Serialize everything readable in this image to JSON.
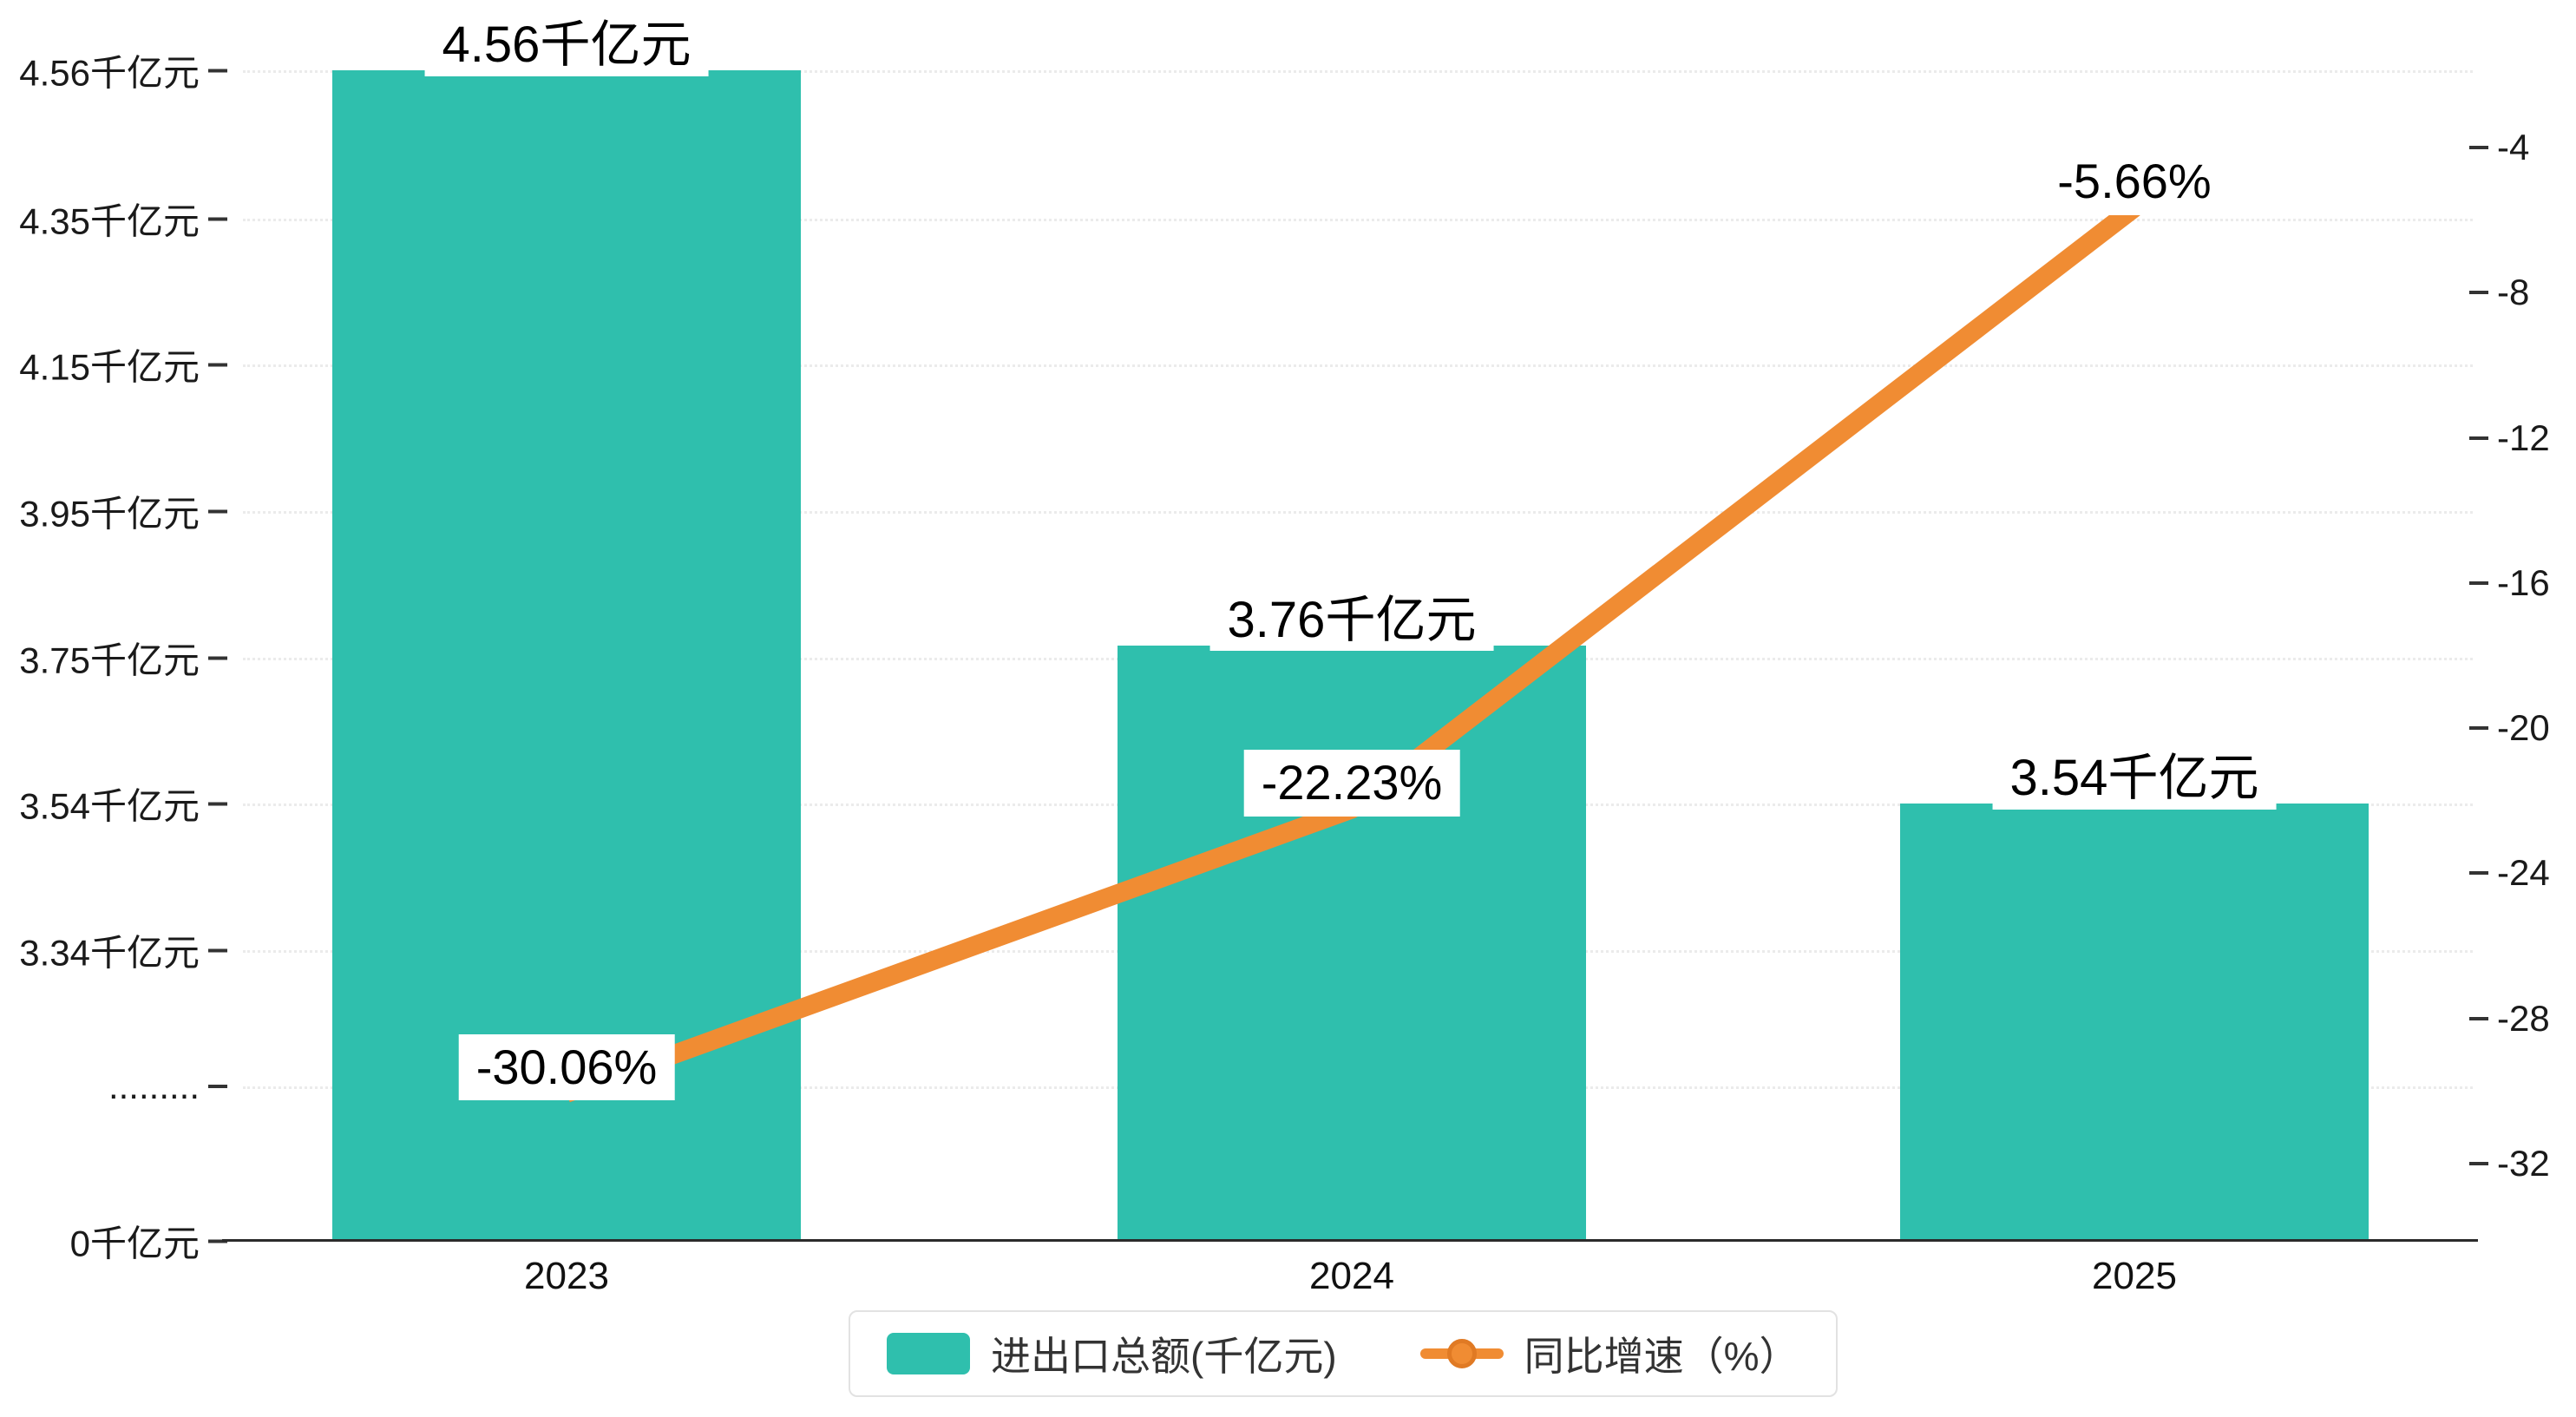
{
  "chart_data": {
    "type": "bar+line",
    "categories": [
      "2023",
      "2024",
      "2025"
    ],
    "series": [
      {
        "name": "进出口总额(千亿元)",
        "type": "bar",
        "color": "#2fbfad",
        "values": [
          4.56,
          3.76,
          3.54
        ],
        "display_labels": [
          "4.56千亿元",
          "3.76千亿元",
          "3.54千亿元"
        ]
      },
      {
        "name": "同比增速（%）",
        "type": "line",
        "color": "#f08c33",
        "values": [
          -30.06,
          -22.23,
          -5.66
        ],
        "display_labels": [
          "-30.06%",
          "-22.23%",
          "-5.66%"
        ]
      }
    ],
    "left_axis": {
      "unit": "千亿元",
      "tick_labels": [
        "4.56千亿元",
        "4.35千亿元",
        "4.15千亿元",
        "3.95千亿元",
        "3.75千亿元",
        "3.54千亿元",
        "3.34千亿元",
        ".........",
        "0千亿元"
      ],
      "axis_break": true
    },
    "right_axis": {
      "tick_labels": [
        "-4",
        "-8",
        "-12",
        "-16",
        "-20",
        "-24",
        "-28",
        "-32"
      ],
      "range": [
        -32,
        -4
      ]
    },
    "legend": {
      "position": "bottom",
      "items": [
        "进出口总额(千亿元)",
        "同比增速（%）"
      ]
    },
    "grid": {
      "horizontal_dotted": true
    }
  },
  "colors": {
    "bar": "#2fbfad",
    "line": "#f08c33",
    "grid": "#ebebeb",
    "axis": "#2b2b2b",
    "text": "#1a1a1a"
  }
}
